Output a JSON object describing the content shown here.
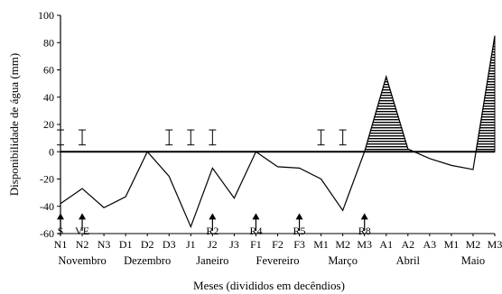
{
  "chart_data": {
    "type": "line",
    "title": "",
    "xlabel": "Meses (divididos em decêndios)",
    "ylabel": "Disponibilidade de água (mm)",
    "ylim": [
      -60,
      100
    ],
    "yticks": [
      -60,
      -40,
      -20,
      0,
      20,
      40,
      60,
      80,
      100
    ],
    "categories": [
      "N1",
      "N2",
      "N3",
      "D1",
      "D2",
      "D3",
      "J1",
      "J2",
      "J3",
      "F1",
      "F2",
      "F3",
      "M1",
      "M2",
      "M3",
      "A1",
      "A2",
      "A3",
      "M1",
      "M2",
      "M3"
    ],
    "months": [
      {
        "label": "Novembro",
        "from": 0,
        "to": 2
      },
      {
        "label": "Dezembro",
        "from": 3,
        "to": 5
      },
      {
        "label": "Janeiro",
        "from": 6,
        "to": 8
      },
      {
        "label": "Fevereiro",
        "from": 9,
        "to": 11
      },
      {
        "label": "Março",
        "from": 12,
        "to": 14
      },
      {
        "label": "Abril",
        "from": 15,
        "to": 17
      },
      {
        "label": "Maio",
        "from": 18,
        "to": 20
      }
    ],
    "series": [
      {
        "values": [
          -38,
          -27,
          -41,
          -33,
          0,
          -18,
          -55,
          -12,
          -34,
          0,
          -11,
          -12,
          -20,
          -43,
          0,
          55,
          2,
          -5,
          -10,
          -13,
          85
        ]
      }
    ],
    "error_bars": [
      {
        "x": 0,
        "low": 5,
        "high": 16
      },
      {
        "x": 1,
        "low": 5,
        "high": 16
      },
      {
        "x": 5,
        "low": 5,
        "high": 16
      },
      {
        "x": 6,
        "low": 5,
        "high": 16
      },
      {
        "x": 7,
        "low": 5,
        "high": 16
      },
      {
        "x": 12,
        "low": 5,
        "high": 16
      },
      {
        "x": 13,
        "low": 5,
        "high": 16
      }
    ],
    "annotations": [
      {
        "label": "S",
        "x": 0
      },
      {
        "label": "VE",
        "x": 1
      },
      {
        "label": "R2",
        "x": 7
      },
      {
        "label": "R4",
        "x": 9
      },
      {
        "label": "R5",
        "x": 11
      },
      {
        "label": "R8",
        "x": 14
      }
    ],
    "grid": false,
    "legend": "none",
    "colors": {
      "line": "#000000",
      "hatch": "#000000"
    }
  }
}
